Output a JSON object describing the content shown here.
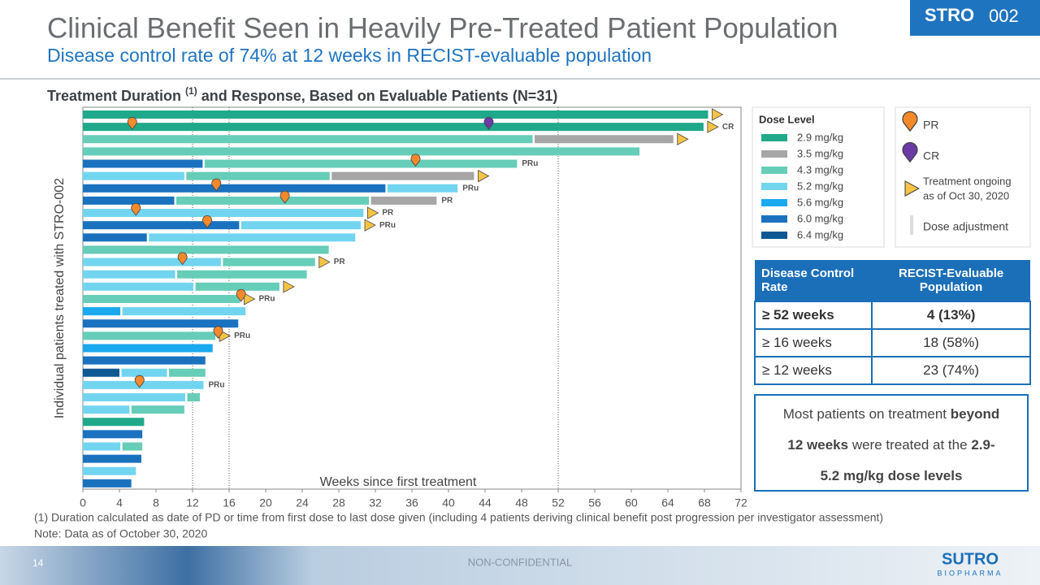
{
  "header": {
    "title": "Clinical Benefit Seen in Heavily Pre-Treated Patient Population",
    "subtitle": "Disease control rate of 74% at 12 weeks in RECIST-evaluable population",
    "badge": [
      "STRO",
      "002"
    ]
  },
  "chart_data": {
    "type": "swimmer",
    "title": "Treatment Duration",
    "title_note": "(1)",
    "title_end": "and Response, Based on Evaluable Patients (N=31)",
    "x_label": "Weeks since first treatment",
    "y_label": "Individual patients treated with STRO-002",
    "xlim": [
      0,
      72
    ],
    "xticks": [
      0,
      4,
      8,
      12,
      16,
      20,
      24,
      28,
      32,
      36,
      40,
      44,
      48,
      52,
      56,
      60,
      64,
      68,
      72
    ],
    "reference_lines": [
      12,
      16,
      52
    ],
    "dose_legend_title": "Dose Level",
    "doses": [
      {
        "name": "2.9 mg/kg",
        "color": "#1fa98a"
      },
      {
        "name": "3.5 mg/kg",
        "color": "#a6a6a6"
      },
      {
        "name": "4.3 mg/kg",
        "color": "#66cdb8"
      },
      {
        "name": "5.2 mg/kg",
        "color": "#72d5f0"
      },
      {
        "name": "5.6 mg/kg",
        "color": "#1aa9ee"
      },
      {
        "name": "6.0 mg/kg",
        "color": "#1a72bf"
      },
      {
        "name": "6.4 mg/kg",
        "color": "#0e5894"
      }
    ],
    "responses": [
      {
        "name": "PR",
        "color": "#f4892c"
      },
      {
        "name": "CR",
        "color": "#6b3aa6"
      }
    ],
    "arrow_color": "#f6c445",
    "ongoing_label": [
      "Treatment ongoing",
      "as of Oct 30, 2020"
    ],
    "adjustment_label": "Dose adjustment",
    "patients": [
      {
        "segments": [
          [
            0,
            68.4
          ]
        ],
        "ongoing": true
      },
      {
        "segments": [
          [
            0,
            67.9
          ]
        ],
        "markers": [
          [
            0,
            5.4
          ],
          [
            1,
            44.4
          ]
        ],
        "ongoing": true,
        "label": "CR"
      },
      {
        "segments": [
          [
            2,
            49.2
          ],
          [
            1,
            15.4
          ]
        ],
        "ongoing": true
      },
      {
        "segments": [
          [
            2,
            60.9
          ]
        ]
      },
      {
        "segments": [
          [
            5,
            13.1
          ],
          [
            2,
            34.4
          ]
        ],
        "markers": [
          [
            0,
            36.4
          ]
        ],
        "label": "PRu"
      },
      {
        "segments": [
          [
            3,
            11.1
          ],
          [
            2,
            15.9
          ],
          [
            1,
            15.8
          ]
        ],
        "ongoing": true
      },
      {
        "segments": [
          [
            5,
            33.1
          ],
          [
            3,
            7.9
          ]
        ],
        "markers": [
          [
            0,
            14.6
          ]
        ],
        "label": "PRu"
      },
      {
        "segments": [
          [
            5,
            10.0
          ],
          [
            2,
            21.3
          ],
          [
            1,
            7.4
          ]
        ],
        "markers": [
          [
            0,
            22.1
          ]
        ],
        "label": "PR"
      },
      {
        "segments": [
          [
            3,
            30.7
          ]
        ],
        "markers": [
          [
            0,
            5.8
          ]
        ],
        "ongoing": true,
        "label": "PR"
      },
      {
        "segments": [
          [
            5,
            17.1
          ],
          [
            3,
            13.3
          ]
        ],
        "markers": [
          [
            0,
            13.6
          ]
        ],
        "ongoing": true,
        "label": "PRu"
      },
      {
        "segments": [
          [
            5,
            7.0
          ],
          [
            3,
            22.8
          ]
        ]
      },
      {
        "segments": [
          [
            2,
            26.9
          ]
        ]
      },
      {
        "segments": [
          [
            3,
            15.1
          ],
          [
            2,
            10.3
          ]
        ],
        "markers": [
          [
            0,
            10.9
          ]
        ],
        "ongoing": true,
        "label": "PR"
      },
      {
        "segments": [
          [
            3,
            10.1
          ],
          [
            2,
            14.4
          ]
        ]
      },
      {
        "segments": [
          [
            3,
            12.1
          ],
          [
            2,
            9.4
          ]
        ],
        "ongoing": true
      },
      {
        "segments": [
          [
            2,
            17.2
          ]
        ],
        "markers": [
          [
            0,
            17.3
          ]
        ],
        "ongoing": true,
        "label": "PRu"
      },
      {
        "segments": [
          [
            4,
            4.1
          ],
          [
            3,
            13.7
          ]
        ]
      },
      {
        "segments": [
          [
            5,
            17.0
          ]
        ]
      },
      {
        "segments": [
          [
            2,
            14.5
          ]
        ],
        "markers": [
          [
            0,
            14.8
          ]
        ],
        "ongoing": true,
        "label": "PRu"
      },
      {
        "segments": [
          [
            4,
            14.2
          ]
        ]
      },
      {
        "segments": [
          [
            5,
            13.4
          ]
        ]
      },
      {
        "segments": [
          [
            6,
            4.0
          ],
          [
            3,
            5.2
          ],
          [
            2,
            4.2
          ]
        ]
      },
      {
        "segments": [
          [
            3,
            13.2
          ]
        ],
        "markers": [
          [
            0,
            6.2
          ]
        ],
        "label": "PRu"
      },
      {
        "segments": [
          [
            3,
            11.2
          ],
          [
            2,
            1.6
          ]
        ]
      },
      {
        "segments": [
          [
            3,
            5.1
          ],
          [
            2,
            6.0
          ]
        ]
      },
      {
        "segments": [
          [
            0,
            6.7
          ]
        ]
      },
      {
        "segments": [
          [
            5,
            6.5
          ]
        ]
      },
      {
        "segments": [
          [
            3,
            4.1
          ],
          [
            2,
            2.4
          ]
        ]
      },
      {
        "segments": [
          [
            5,
            6.4
          ]
        ]
      },
      {
        "segments": [
          [
            3,
            5.8
          ]
        ]
      },
      {
        "segments": [
          [
            5,
            5.3
          ]
        ]
      }
    ]
  },
  "table": {
    "header": [
      "Disease Control Rate",
      "RECIST-Evaluable Population"
    ],
    "rows": [
      [
        "≥ 52 weeks",
        "4 (13%)"
      ],
      [
        "≥ 16 weeks",
        "18 (58%)"
      ],
      [
        "≥ 12 weeks",
        "23 (74%)"
      ]
    ]
  },
  "callout": [
    [
      {
        "text": "Most patients on treatment",
        "bold": false
      },
      {
        "text": "beyond",
        "bold": true
      }
    ],
    [
      {
        "text": "12 weeks",
        "bold": true
      },
      {
        "text": "were treated at the",
        "bold": false
      },
      {
        "text": "2.9-",
        "bold": true
      }
    ],
    [
      {
        "text": "5.2 mg/kg dose levels",
        "bold": true
      }
    ]
  ],
  "footnotes": [
    "(1) Duration calculated as date of PD or time from first dose to last dose given (including 4 patients deriving clinical benefit post progression per investigator assessment)",
    "Note: Data as of October 30, 2020"
  ],
  "footer": {
    "page": "14",
    "classification": "NON-CONFIDENTIAL",
    "logo": "SUTRO",
    "logo_sub": "BIOPHARMA"
  }
}
